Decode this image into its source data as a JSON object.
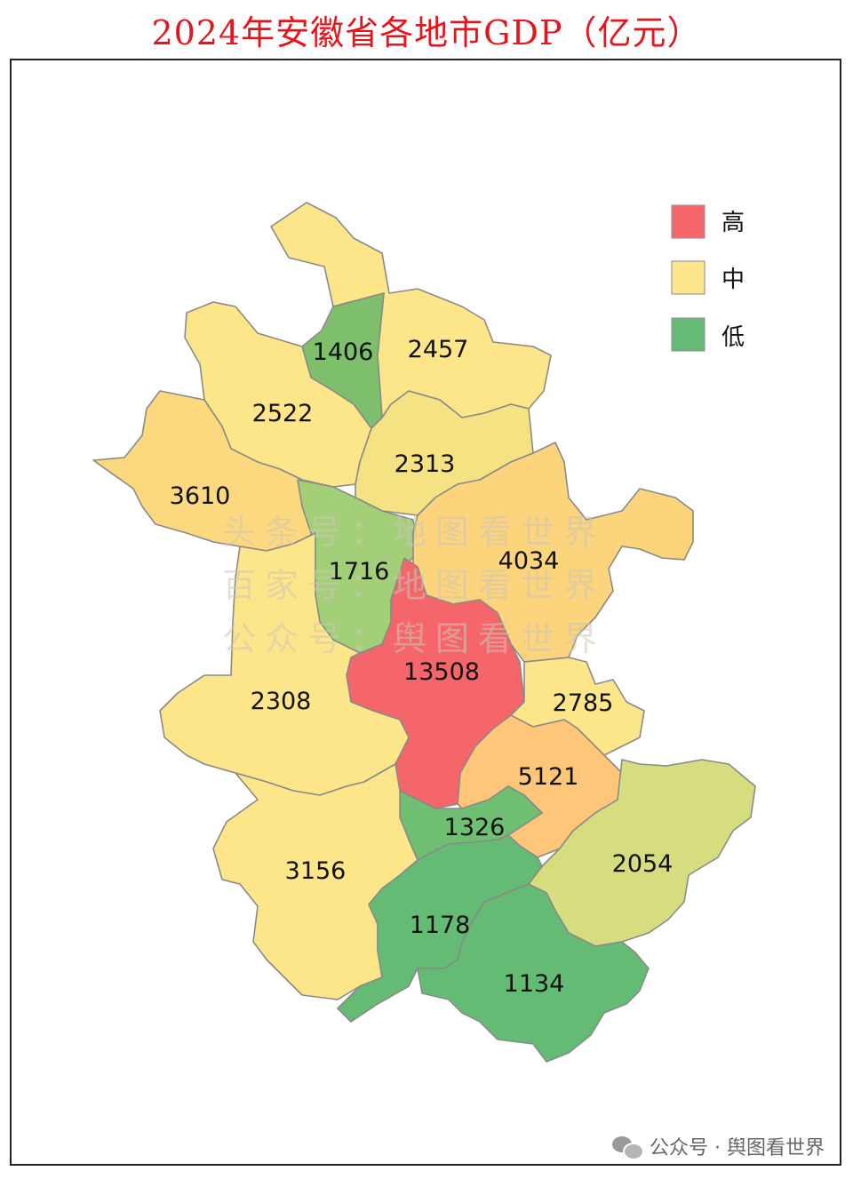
{
  "title": "2024年安徽省各地市GDP（亿元）",
  "legend": [
    {
      "label": "高",
      "color": "#f4666a"
    },
    {
      "label": "中",
      "color": "#fde689"
    },
    {
      "label": "低",
      "color": "#64bb74"
    }
  ],
  "regions": [
    {
      "id": "huaibei",
      "value": "1406",
      "color": "#7dbf6a"
    },
    {
      "id": "suzhou",
      "value": "2457",
      "color": "#fde689"
    },
    {
      "id": "bozhou",
      "value": "2522",
      "color": "#fde689"
    },
    {
      "id": "bengbu",
      "value": "2313",
      "color": "#f5e282"
    },
    {
      "id": "fuyang",
      "value": "3610",
      "color": "#fcd87e"
    },
    {
      "id": "huainan",
      "value": "1716",
      "color": "#a3cf78"
    },
    {
      "id": "chuzhou",
      "value": "4034",
      "color": "#fbd47c"
    },
    {
      "id": "hefei",
      "value": "13508",
      "color": "#f4666a"
    },
    {
      "id": "luan",
      "value": "2308",
      "color": "#fde689"
    },
    {
      "id": "maanshan",
      "value": "2785",
      "color": "#fde689"
    },
    {
      "id": "wuhu",
      "value": "5121",
      "color": "#fdc679"
    },
    {
      "id": "tongling",
      "value": "1326",
      "color": "#6fbf72"
    },
    {
      "id": "xuancheng",
      "value": "2054",
      "color": "#d6dd7e"
    },
    {
      "id": "anqing",
      "value": "3156",
      "color": "#fde689"
    },
    {
      "id": "chizhou",
      "value": "1178",
      "color": "#64bb74"
    },
    {
      "id": "huangshan",
      "value": "1134",
      "color": "#64bb74"
    }
  ],
  "watermark": [
    "头条号：地图看世界",
    "百家号：地图看世界",
    "公众号：舆图看世界"
  ],
  "footer": {
    "text": "公众号 · 舆图看世界",
    "icon": "wechat-icon"
  }
}
